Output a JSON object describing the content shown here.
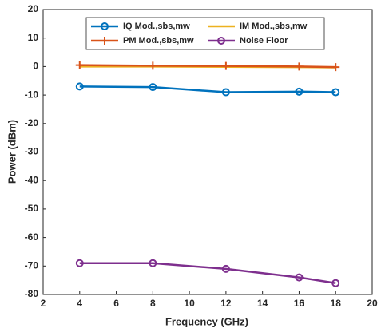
{
  "chart_data": {
    "type": "line",
    "xlabel": "Frequency (GHz)",
    "ylabel": "Power (dBm)",
    "xlim": [
      2,
      20
    ],
    "xticks": [
      2,
      4,
      6,
      8,
      10,
      12,
      14,
      16,
      18,
      20
    ],
    "ylim": [
      -80,
      20
    ],
    "yticks": [
      -80,
      -70,
      -60,
      -50,
      -40,
      -30,
      -20,
      -10,
      0,
      10,
      20
    ],
    "grid": false,
    "legend": "top",
    "x": [
      4,
      8,
      12,
      16,
      18
    ],
    "series": [
      {
        "name": "IQ Mod.,sbs,mw",
        "color": "#0072BD",
        "marker": "o",
        "values": [
          -7,
          -7.2,
          -9,
          -8.8,
          -9
        ]
      },
      {
        "name": "IM Mod.,sbs,mw",
        "color": "#EDB120",
        "marker": "none",
        "values": [
          0,
          0,
          -0.1,
          -0.2,
          -0.3
        ]
      },
      {
        "name": "PM Mod.,sbs,mw",
        "color": "#D95319",
        "marker": "+",
        "values": [
          0.5,
          0.3,
          0.2,
          0,
          -0.2
        ]
      },
      {
        "name": "Noise Floor",
        "color": "#7E2F8E",
        "marker": "o",
        "values": [
          -69,
          -69,
          -71,
          -74,
          -76
        ]
      }
    ]
  }
}
